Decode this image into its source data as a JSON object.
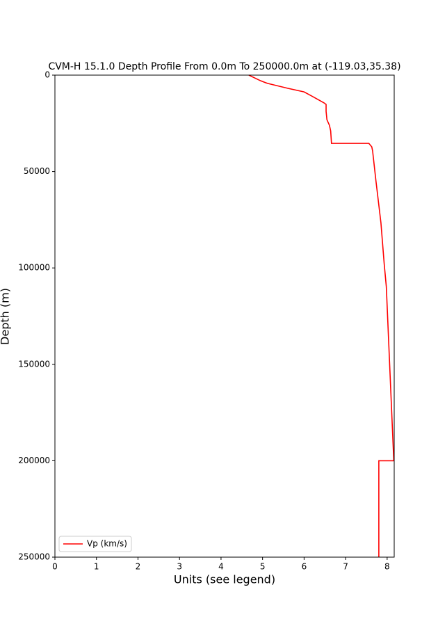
{
  "chart_data": {
    "type": "line",
    "title": "CVM-H 15.1.0 Depth Profile From 0.0m To 250000.0m at (-119.03,35.38)",
    "x_label": "Units (see legend)",
    "y_label": "Depth (m)",
    "y": [
      0,
      2900,
      4300,
      6900,
      8700,
      10800,
      14400,
      15200,
      18800,
      23100,
      26000,
      28900,
      35400,
      35400,
      37200,
      39300,
      54800,
      76500,
      98100,
      109700,
      200000,
      200000,
      250000
    ],
    "series": [
      {
        "name": "Vp (km/s)",
        "color": "#ff0000",
        "values": [
          4.67,
          4.95,
          5.12,
          5.62,
          6.0,
          6.18,
          6.48,
          6.53,
          6.53,
          6.55,
          6.61,
          6.64,
          6.66,
          7.56,
          7.63,
          7.65,
          7.73,
          7.85,
          7.93,
          7.98,
          8.16,
          7.8,
          7.8
        ]
      }
    ],
    "xlim": [
      0,
      8.17
    ],
    "xticks": [
      0,
      1,
      2,
      3,
      4,
      5,
      6,
      7,
      8
    ],
    "ylim": [
      250000,
      0
    ],
    "yticks": [
      0,
      50000,
      100000,
      150000,
      200000,
      250000
    ],
    "legend": "lower left"
  }
}
